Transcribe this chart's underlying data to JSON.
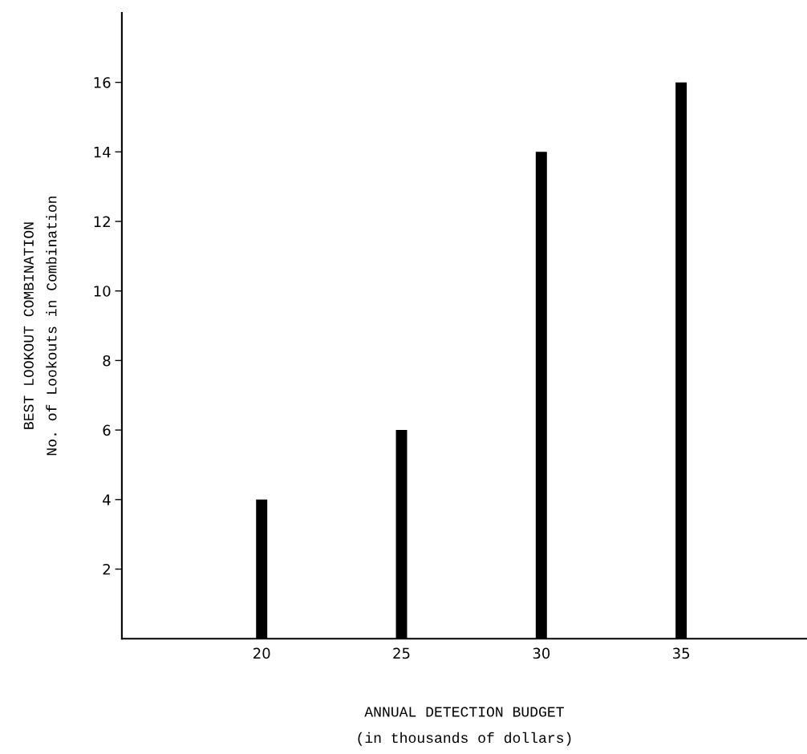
{
  "chart_data": {
    "type": "bar",
    "xlabel": "ANNUAL DETECTION BUDGET\n(in thousands of dollars)",
    "ylabel": "BEST LOOKOUT COMBINATION\nNo. of Lookouts in Combination",
    "x": [
      20,
      25,
      30,
      35
    ],
    "values": [
      4,
      6,
      14,
      16
    ],
    "color": "#000000",
    "xlim": [
      15,
      39.5
    ],
    "xticks": [
      20,
      25,
      30,
      35
    ],
    "ylim": [
      0,
      18
    ],
    "yticks": [
      2,
      4,
      6,
      8,
      10,
      12,
      14,
      16
    ],
    "grid": false
  }
}
